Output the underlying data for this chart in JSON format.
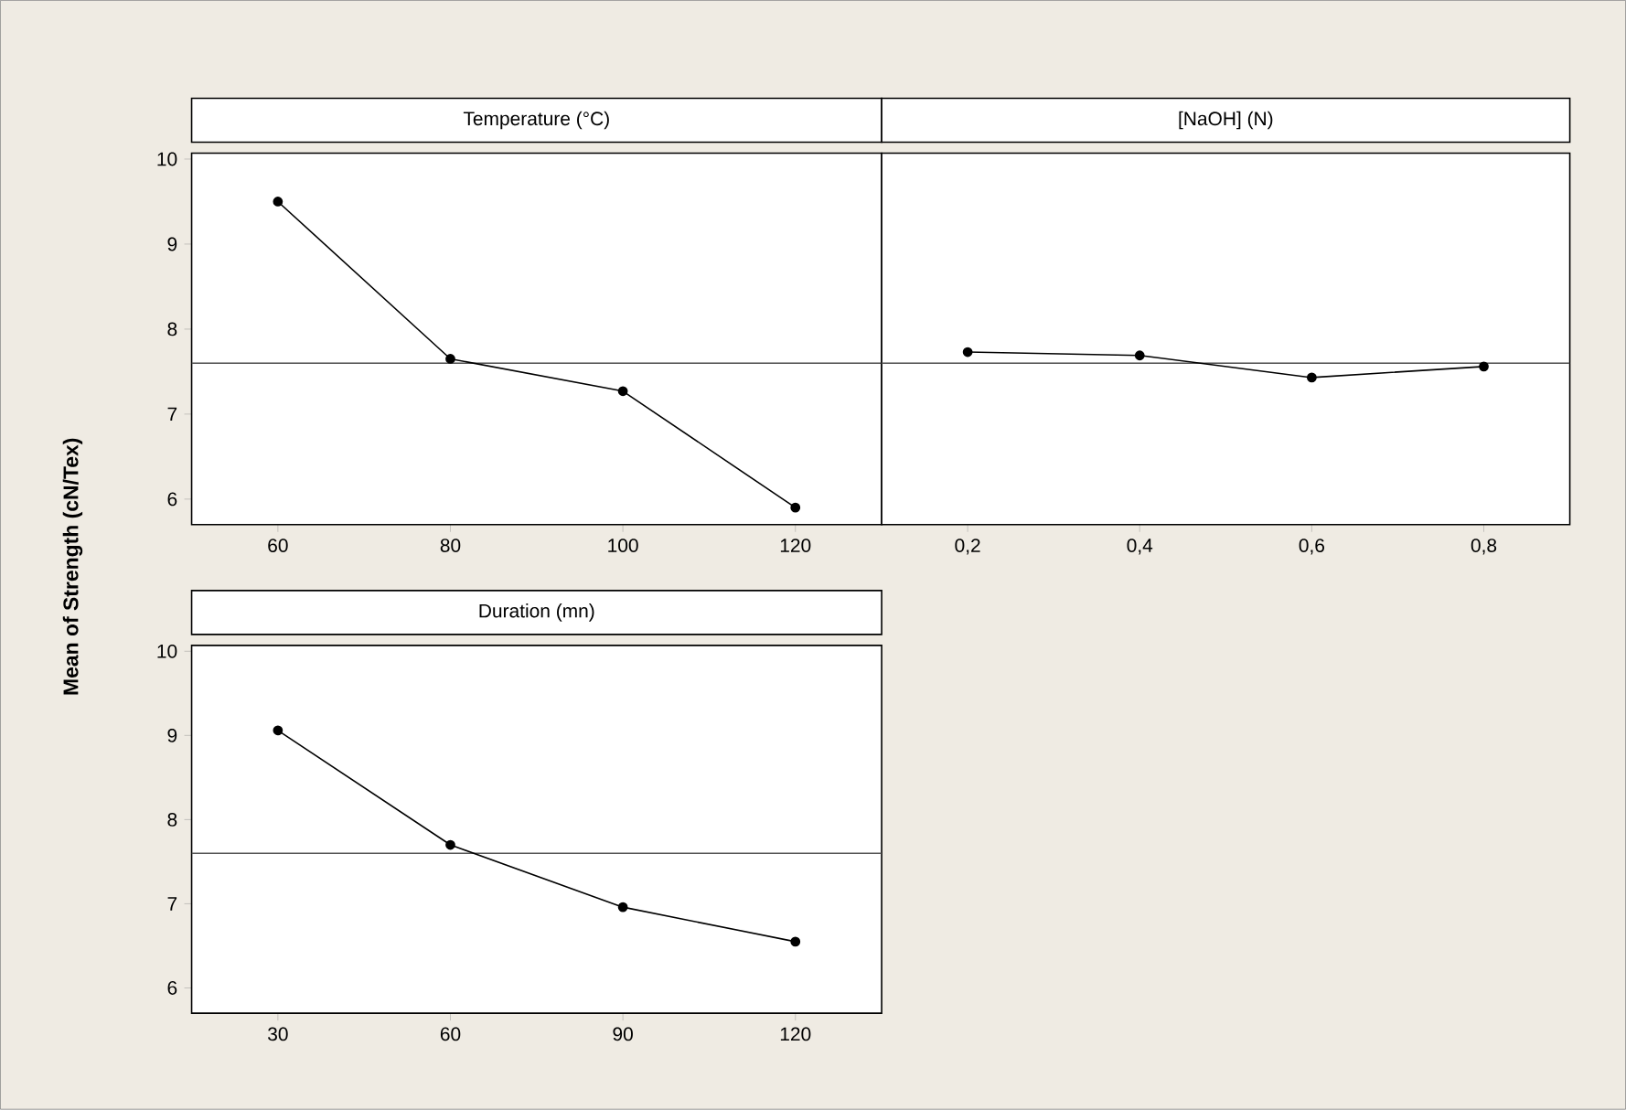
{
  "chart_data": [
    {
      "type": "line",
      "title": "Temperature (°C)",
      "ylabel": "Mean of Strength (cN/Tex)",
      "x": [
        60,
        80,
        100,
        120
      ],
      "values": [
        9.5,
        7.65,
        7.27,
        5.9
      ],
      "color": "#000000",
      "marker": "circle",
      "line_style": "solid",
      "xlim": [
        50,
        130
      ],
      "xticks": [
        60,
        80,
        100,
        120
      ],
      "ylim": [
        5.7,
        10.07
      ],
      "yticks": [
        6,
        7,
        8,
        9,
        10
      ],
      "ref_lines": [
        {
          "axis": "y",
          "value": 7.6,
          "color": "#555555"
        }
      ]
    },
    {
      "type": "line",
      "title": "[NaOH] (N)",
      "x": [
        0.2,
        0.4,
        0.6,
        0.8
      ],
      "values": [
        7.73,
        7.69,
        7.43,
        7.56
      ],
      "color": "#000000",
      "marker": "circle",
      "line_style": "solid",
      "xlim": [
        0.1,
        0.9
      ],
      "xticks": [
        {
          "value": 0.2,
          "label": "0,2"
        },
        {
          "value": 0.4,
          "label": "0,4"
        },
        {
          "value": 0.6,
          "label": "0,6"
        },
        {
          "value": 0.8,
          "label": "0,8"
        }
      ],
      "ylim": [
        5.7,
        10.07
      ],
      "tick_labels": "x",
      "ref_lines": [
        {
          "axis": "y",
          "value": 7.6,
          "color": "#555555"
        }
      ]
    },
    {
      "type": "line",
      "title": "Duration (mn)",
      "x": [
        30,
        60,
        90,
        120
      ],
      "values": [
        9.06,
        7.7,
        6.96,
        6.55
      ],
      "color": "#000000",
      "marker": "circle",
      "line_style": "solid",
      "xlim": [
        15,
        135
      ],
      "xticks": [
        30,
        60,
        90,
        120
      ],
      "ylim": [
        5.7,
        10.07
      ],
      "yticks": [
        6,
        7,
        8,
        9,
        10
      ],
      "ref_lines": [
        {
          "axis": "y",
          "value": 7.6,
          "color": "#555555"
        }
      ]
    }
  ]
}
